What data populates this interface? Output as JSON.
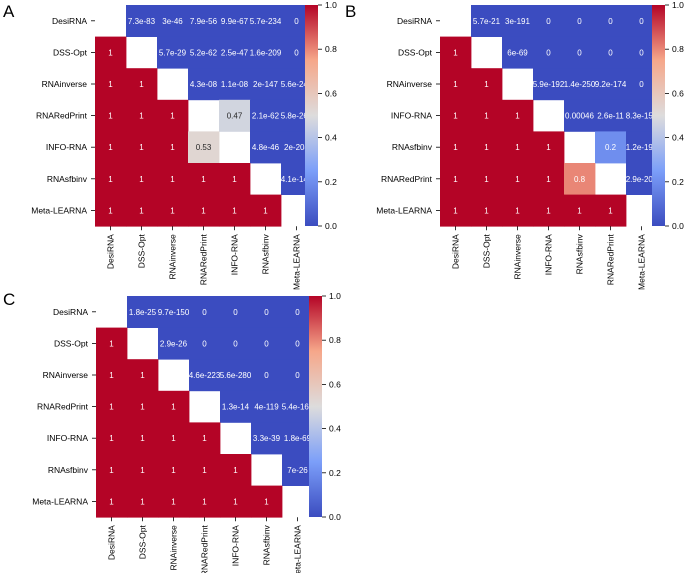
{
  "chart_data": [
    {
      "type": "heatmap",
      "panel_label": "A",
      "labels": [
        "DesiRNA",
        "DSS-Opt",
        "RNAinverse",
        "RNARedPrint",
        "INFO-RNA",
        "RNAsfbinv",
        "Meta-LEARNA"
      ],
      "cell_text": [
        [
          null,
          "7.3e-83",
          "3e-46",
          "7.9e-56",
          "9.9e-67",
          "5.7e-234",
          "0"
        ],
        [
          "1",
          null,
          "5.7e-29",
          "5.2e-62",
          "2.5e-47",
          "1.6e-209",
          "0"
        ],
        [
          "1",
          "1",
          null,
          "4.3e-08",
          "1.1e-08",
          "2e-147",
          "5.6e-243"
        ],
        [
          "1",
          "1",
          "1",
          null,
          "0.47",
          "2.1e-62",
          "5.8e-267"
        ],
        [
          "1",
          "1",
          "1",
          "0.53",
          null,
          "4.8e-46",
          "2e-208"
        ],
        [
          "1",
          "1",
          "1",
          "1",
          "1",
          null,
          "4.1e-142"
        ],
        [
          "1",
          "1",
          "1",
          "1",
          "1",
          "1",
          null
        ]
      ],
      "colorbar": {
        "min": 0,
        "max": 1,
        "ticks": [
          "0.0",
          "0.2",
          "0.4",
          "0.6",
          "0.8",
          "1.0"
        ]
      }
    },
    {
      "type": "heatmap",
      "panel_label": "B",
      "labels": [
        "DesiRNA",
        "DSS-Opt",
        "RNAinverse",
        "INFO-RNA",
        "RNAsfbinv",
        "RNARedPrint",
        "Meta-LEARNA"
      ],
      "cell_text": [
        [
          null,
          "5.7e-21",
          "3e-191",
          "0",
          "0",
          "0",
          "0"
        ],
        [
          "1",
          null,
          "6e-69",
          "0",
          "0",
          "0",
          "0"
        ],
        [
          "1",
          "1",
          null,
          "5.9e-192",
          "1.4e-250",
          "9.2e-174",
          "0"
        ],
        [
          "1",
          "1",
          "1",
          null,
          "0.00046",
          "2.6e-11",
          "8.3e-150"
        ],
        [
          "1",
          "1",
          "1",
          "1",
          null,
          "0.2",
          "1.2e-195"
        ],
        [
          "1",
          "1",
          "1",
          "1",
          "0.8",
          null,
          "2.9e-203"
        ],
        [
          "1",
          "1",
          "1",
          "1",
          "1",
          "1",
          null
        ]
      ],
      "colorbar": {
        "min": 0,
        "max": 1,
        "ticks": [
          "0.0",
          "0.2",
          "0.4",
          "0.6",
          "0.8",
          "1.0"
        ]
      }
    },
    {
      "type": "heatmap",
      "panel_label": "C",
      "labels": [
        "DesiRNA",
        "DSS-Opt",
        "RNAinverse",
        "RNARedPrint",
        "INFO-RNA",
        "RNAsfbinv",
        "Meta-LEARNA"
      ],
      "cell_text": [
        [
          null,
          "1.8e-25",
          "9.7e-150",
          "0",
          "0",
          "0",
          "0"
        ],
        [
          "1",
          null,
          "2.9e-26",
          "0",
          "0",
          "0",
          "0"
        ],
        [
          "1",
          "1",
          null,
          "4.6e-223",
          "5.6e-280",
          "0",
          "0"
        ],
        [
          "1",
          "1",
          "1",
          null,
          "1.3e-14",
          "4e-119",
          "5.4e-167"
        ],
        [
          "1",
          "1",
          "1",
          "1",
          null,
          "3.3e-39",
          "1.8e-69"
        ],
        [
          "1",
          "1",
          "1",
          "1",
          "1",
          null,
          "7e-26"
        ],
        [
          "1",
          "1",
          "1",
          "1",
          "1",
          "1",
          null
        ]
      ],
      "colorbar": {
        "min": 0,
        "max": 1,
        "ticks": [
          "0.0",
          "0.2",
          "0.4",
          "0.6",
          "0.8",
          "1.0"
        ]
      }
    }
  ]
}
